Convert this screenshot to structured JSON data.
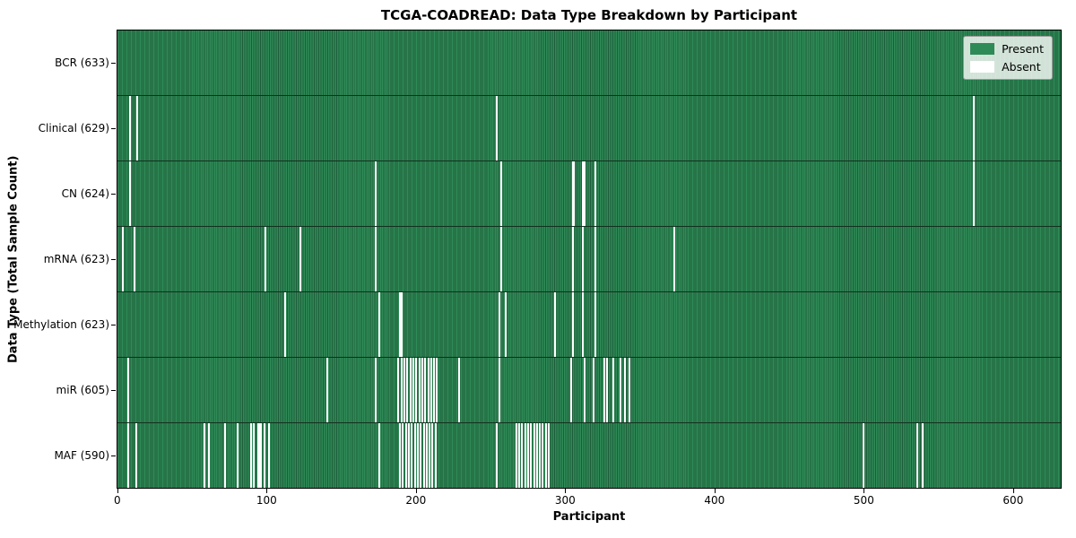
{
  "chart_data": {
    "type": "heatmap",
    "title": "TCGA-COADREAD: Data Type Breakdown by Participant",
    "xlabel": "Participant",
    "ylabel": "Data Type (Total Sample Count)",
    "n_participants": 633,
    "x_ticks": [
      0,
      100,
      200,
      300,
      400,
      500,
      600
    ],
    "grid": false,
    "legend_position": "upper right",
    "colors": {
      "present": "#2e8b57",
      "cell_border": "#1e5c3a",
      "absent": "#ffffff",
      "row_separator": "#12301e"
    },
    "legend": [
      {
        "label": "Present",
        "color": "#2e8b57"
      },
      {
        "label": "Absent",
        "color": "#ffffff"
      }
    ],
    "rows": [
      {
        "data_type": "BCR",
        "label": "BCR (633)",
        "present_count": 633,
        "absent_participants": []
      },
      {
        "data_type": "Clinical",
        "label": "Clinical (629)",
        "present_count": 629,
        "absent_participants": [
          8,
          13,
          254,
          574
        ]
      },
      {
        "data_type": "CN",
        "label": "CN (624)",
        "present_count": 624,
        "absent_participants": [
          8,
          173,
          257,
          305,
          306,
          312,
          313,
          320,
          574
        ]
      },
      {
        "data_type": "mRNA",
        "label": "mRNA (623)",
        "present_count": 623,
        "absent_participants": [
          3,
          11,
          99,
          122,
          173,
          257,
          305,
          312,
          320,
          373
        ]
      },
      {
        "data_type": "Methylation",
        "label": "Methylation (623)",
        "present_count": 623,
        "absent_participants": [
          112,
          175,
          189,
          190,
          256,
          260,
          293,
          305,
          312,
          320
        ]
      },
      {
        "data_type": "miR",
        "label": "miR (605)",
        "present_count": 605,
        "absent_participants": [
          7,
          140,
          173,
          188,
          190,
          192,
          194,
          196,
          198,
          200,
          202,
          204,
          206,
          208,
          210,
          212,
          214,
          229,
          256,
          304,
          313,
          319,
          326,
          328,
          332,
          337,
          340,
          343
        ]
      },
      {
        "data_type": "MAF",
        "label": "MAF (590)",
        "present_count": 590,
        "absent_participants": [
          7,
          12,
          58,
          61,
          72,
          80,
          89,
          91,
          94,
          95,
          96,
          98,
          101,
          175,
          189,
          191,
          193,
          195,
          197,
          199,
          201,
          203,
          205,
          207,
          209,
          211,
          213,
          254,
          267,
          269,
          271,
          273,
          275,
          277,
          279,
          281,
          283,
          285,
          287,
          289,
          500,
          536,
          540
        ]
      }
    ]
  }
}
